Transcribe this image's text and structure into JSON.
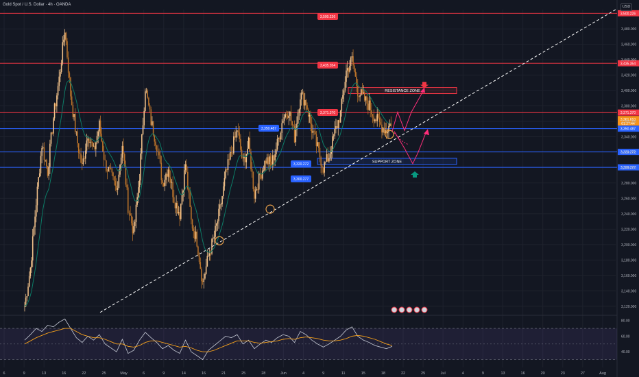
{
  "header": {
    "title": "Gold Spot / U.S. Dollar · 4h · OANDA",
    "currency": "USD"
  },
  "colors": {
    "background": "#131722",
    "resistance": "#f23645",
    "support": "#2962ff",
    "candle": "#e8a04a",
    "ema": "#0c7b66",
    "arrow": "#ff2e7a",
    "rsi_line": "#b8bcc8",
    "rsi_ma": "#f7a21b",
    "down_marker": "#f23645",
    "up_marker": "#089981"
  },
  "chart_data": [
    {
      "type": "candlestick",
      "title": "Gold Spot / U.S. Dollar · 4h · OANDA",
      "timeframe": "4h",
      "source": "OANDA",
      "ylim": [
        3110,
        3505
      ],
      "y_ticks": [
        3120,
        3140,
        3160,
        3180,
        3200,
        3220,
        3240,
        3260,
        3280,
        3300,
        3320,
        3340,
        3360,
        3380,
        3400,
        3420,
        3440,
        3460,
        3480
      ],
      "x_ticks": [
        "6",
        "9",
        "13",
        "16",
        "22",
        "25",
        "May",
        "6",
        "9",
        "14",
        "16",
        "21",
        "25",
        "28",
        "Jun",
        "4",
        "9",
        "11",
        "15",
        "18",
        "22",
        "25",
        "Jul",
        "4",
        "9",
        "13",
        "16",
        "20",
        "23",
        "27",
        "Aug"
      ],
      "horizontal_levels": [
        {
          "price": 3500.226,
          "label": "3,500.226",
          "color": "resistance"
        },
        {
          "price": 3435.354,
          "label": "3,435.354",
          "color": "resistance"
        },
        {
          "price": 3371.37,
          "label": "3,371.370",
          "color": "resistance"
        },
        {
          "price": 3350.487,
          "label": "3,350.487",
          "color": "support"
        },
        {
          "price": 3320.272,
          "label": "3,320.272",
          "color": "support"
        },
        {
          "price": 3300.277,
          "label": "3,300.277",
          "color": "support"
        }
      ],
      "zones": [
        {
          "label": "RESISTANCE ZONE",
          "low": 3396,
          "high": 3404,
          "color": "resistance"
        },
        {
          "label": "SUPPORT ZONE",
          "low": 3304,
          "high": 3312,
          "color": "support"
        }
      ],
      "current_price": {
        "price": "3,361.610",
        "countdown": "01:27:44"
      },
      "close_series": [
        3120,
        3170,
        3255,
        3330,
        3295,
        3365,
        3415,
        3480,
        3395,
        3340,
        3300,
        3345,
        3320,
        3355,
        3305,
        3290,
        3270,
        3330,
        3250,
        3215,
        3290,
        3405,
        3360,
        3330,
        3280,
        3300,
        3260,
        3240,
        3305,
        3230,
        3205,
        3150,
        3185,
        3210,
        3245,
        3290,
        3320,
        3350,
        3305,
        3330,
        3265,
        3290,
        3310,
        3305,
        3330,
        3365,
        3375,
        3340,
        3395,
        3385,
        3350,
        3325,
        3300,
        3315,
        3345,
        3370,
        3425,
        3440,
        3400,
        3390,
        3380,
        3365,
        3355,
        3348,
        3361.61
      ]
    },
    {
      "type": "line",
      "title": "RSI",
      "ylim": [
        20,
        85
      ],
      "y_ticks": [
        40,
        60,
        80
      ],
      "y_tick_labels": [
        "40.00",
        "60.00",
        "80.00"
      ],
      "band": [
        30,
        70
      ],
      "series": [
        {
          "values": [
            55,
            62,
            70,
            66,
            74,
            72,
            78,
            82,
            70,
            58,
            52,
            60,
            55,
            62,
            50,
            45,
            40,
            56,
            38,
            42,
            55,
            65,
            58,
            52,
            44,
            48,
            42,
            38,
            55,
            40,
            35,
            30,
            42,
            48,
            54,
            60,
            58,
            62,
            50,
            55,
            44,
            50,
            55,
            52,
            58,
            62,
            60,
            52,
            66,
            62,
            55,
            50,
            46,
            50,
            55,
            60,
            68,
            72,
            60,
            55,
            52,
            48,
            46,
            44,
            47
          ]
        },
        {
          "values": [
            50,
            54,
            58,
            61,
            64,
            66,
            68,
            70,
            70,
            66,
            62,
            60,
            58,
            58,
            56,
            53,
            50,
            50,
            47,
            46,
            48,
            52,
            54,
            54,
            52,
            50,
            48,
            46,
            47,
            45,
            42,
            40,
            40,
            42,
            45,
            48,
            51,
            54,
            54,
            54,
            52,
            51,
            52,
            53,
            54,
            56,
            57,
            56,
            58,
            59,
            58,
            57,
            55,
            54,
            54,
            55,
            57,
            60,
            61,
            60,
            58,
            56,
            53,
            50,
            48
          ]
        }
      ]
    }
  ]
}
